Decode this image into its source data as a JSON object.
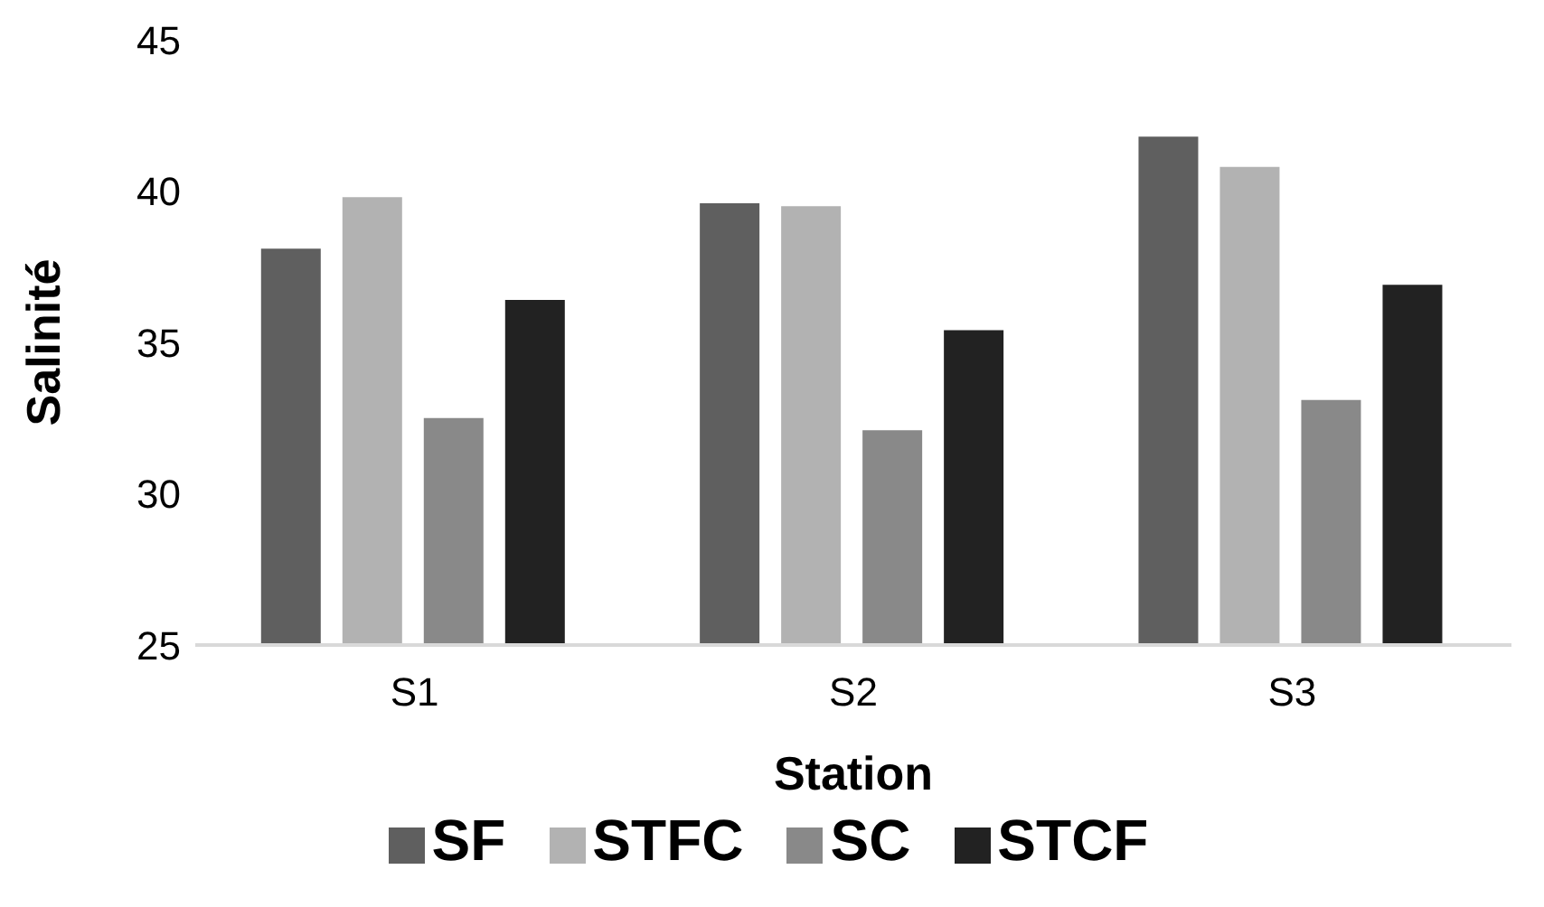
{
  "chart_data": {
    "type": "bar",
    "xlabel": "Station",
    "ylabel": "Salinité",
    "categories": [
      "S1",
      "S2",
      "S3"
    ],
    "series": [
      {
        "name": "SF",
        "color": "#5f5f5f",
        "values": [
          38.1,
          39.6,
          41.8
        ]
      },
      {
        "name": "STFC",
        "color": "#b2b2b2",
        "values": [
          39.8,
          39.5,
          40.8
        ]
      },
      {
        "name": "SC",
        "color": "#898989",
        "values": [
          32.5,
          32.1,
          33.1
        ]
      },
      {
        "name": "STCF",
        "color": "#222222",
        "values": [
          36.4,
          35.4,
          36.9
        ]
      }
    ],
    "ylim": [
      25,
      45
    ],
    "yticks": [
      25,
      30,
      35,
      40,
      45
    ],
    "grid": false,
    "legend": "bottom"
  }
}
